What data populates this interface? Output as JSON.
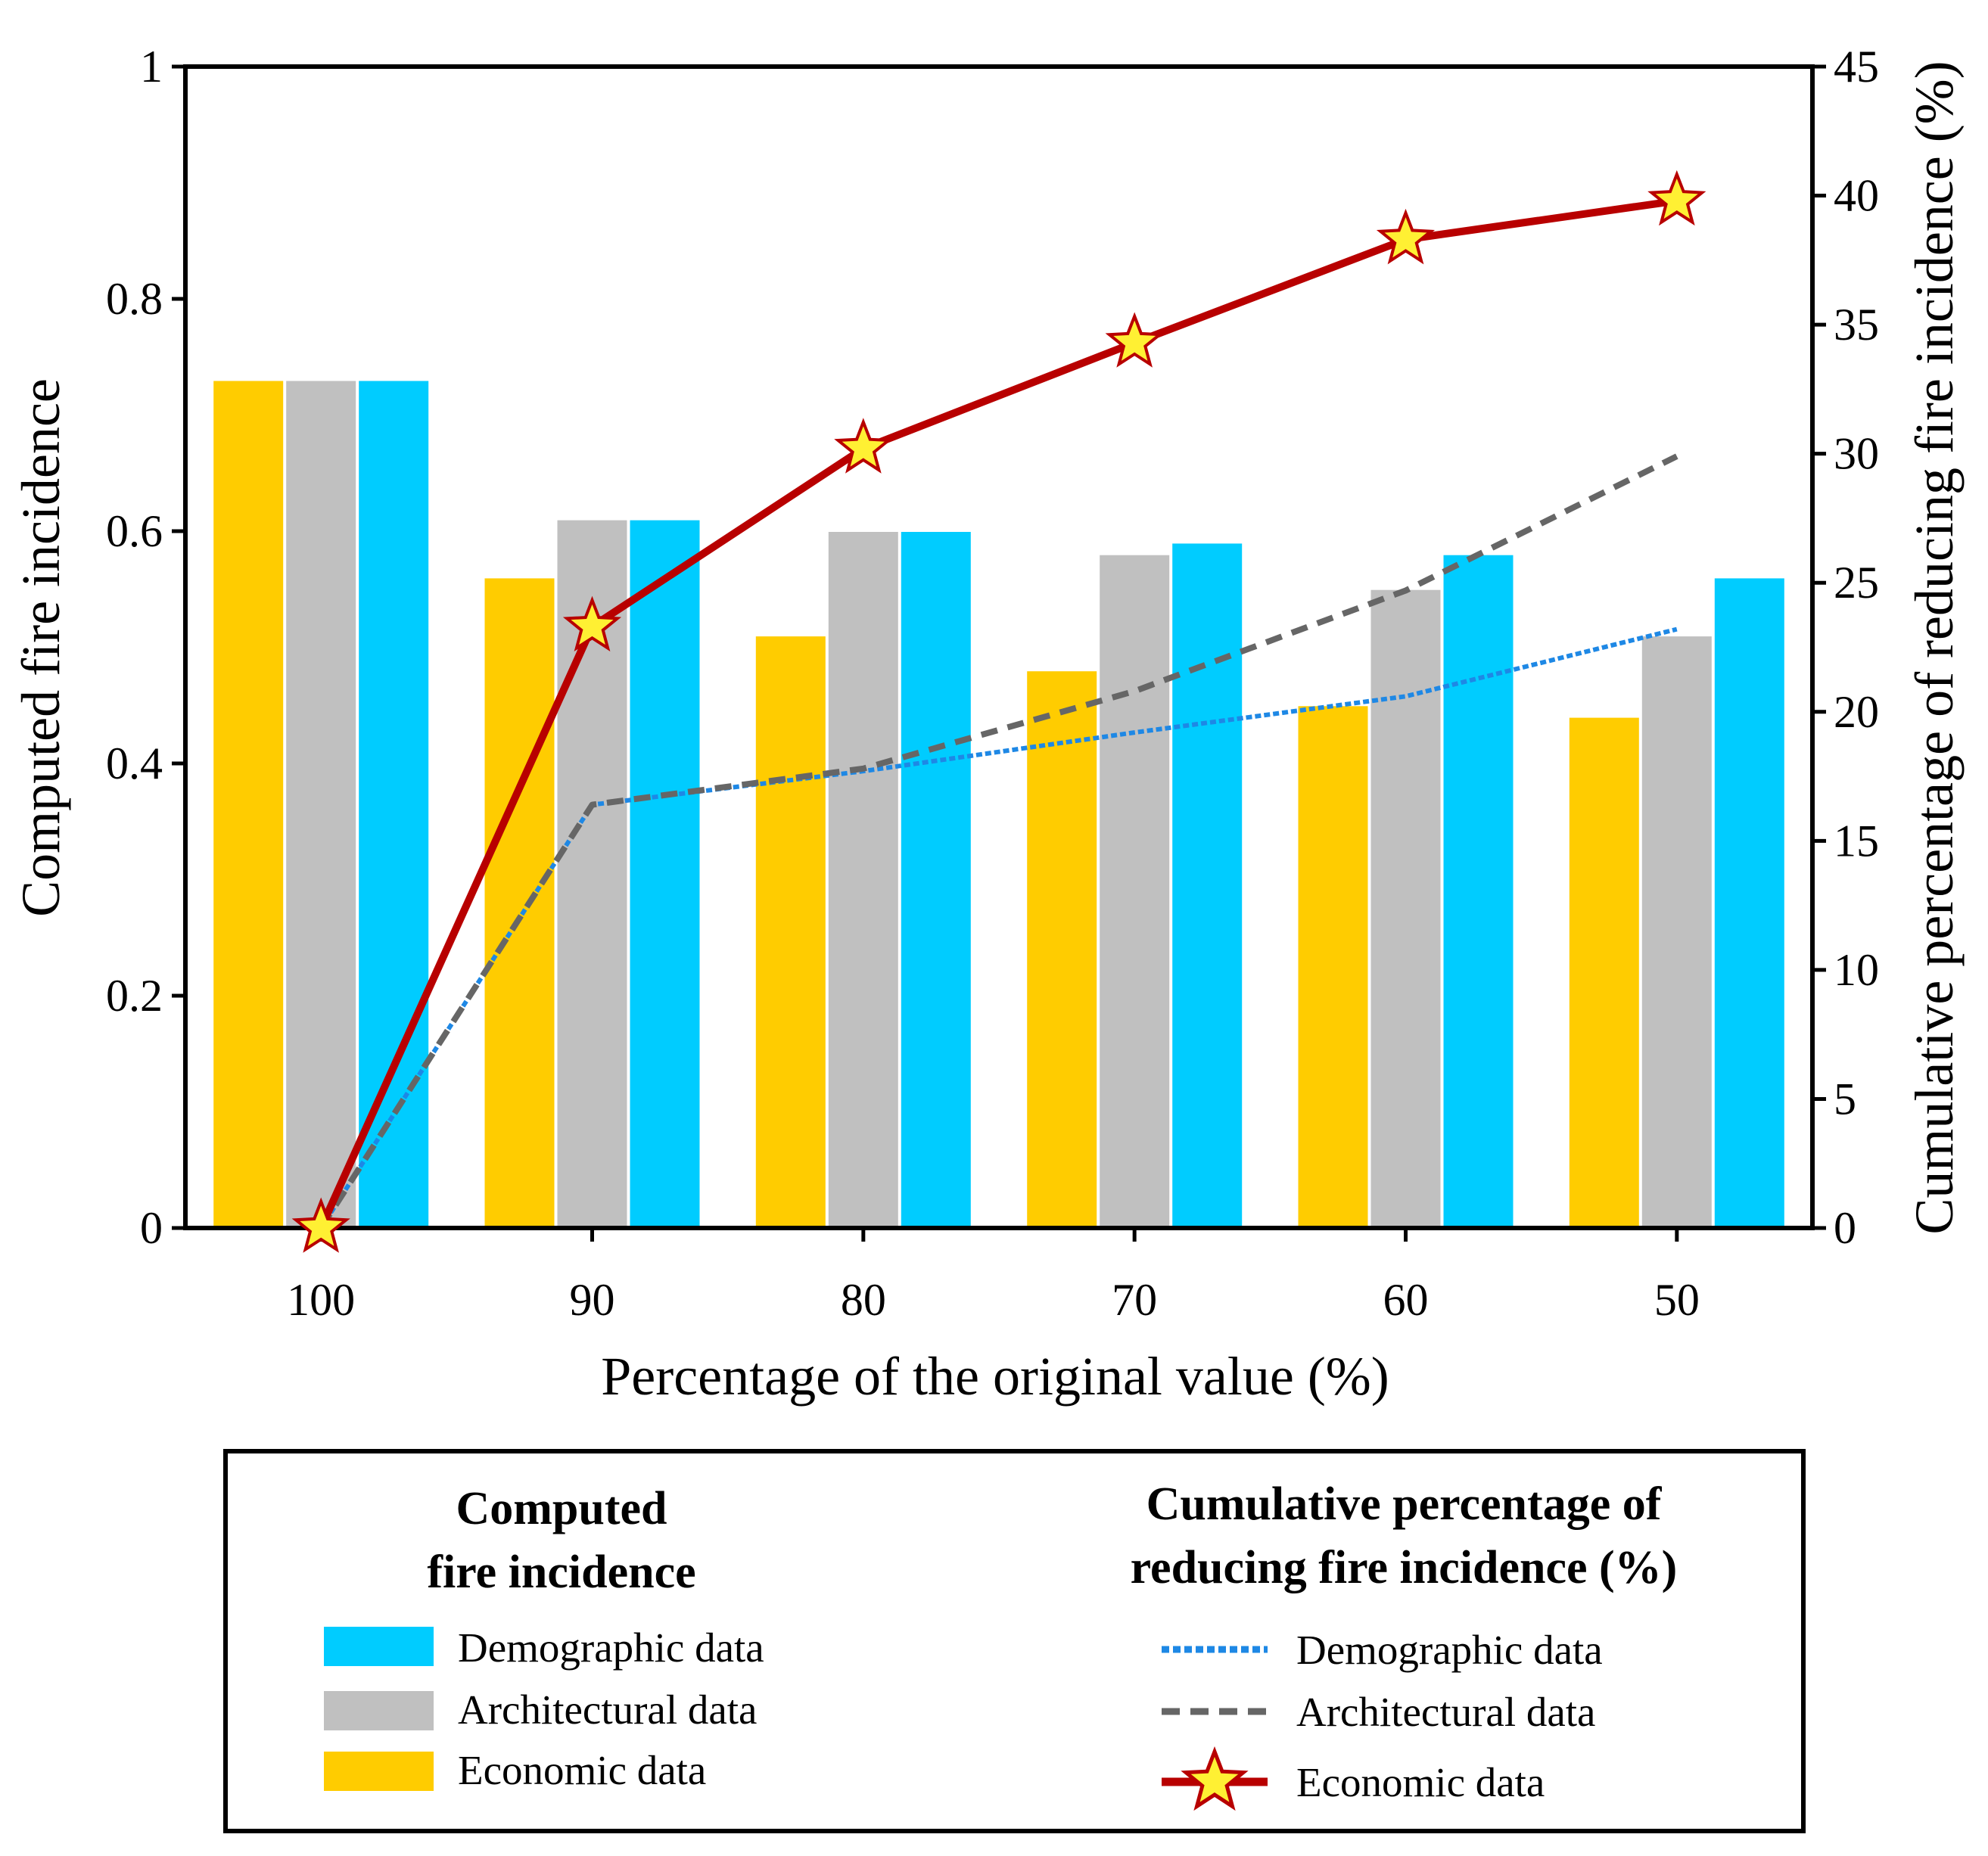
{
  "chart_data": {
    "type": "bar+line",
    "x_axis": {
      "label": "Percentage of the original value (%)",
      "categories": [
        "100",
        "90",
        "80",
        "70",
        "60",
        "50"
      ]
    },
    "y_axis_left": {
      "label": "Computed fire incidence",
      "range": [
        0,
        1
      ],
      "ticks": [
        "0",
        "0.2",
        "0.4",
        "0.6",
        "0.8",
        "1"
      ]
    },
    "y_axis_right": {
      "label": "Cumulative percentage of reducing fire incidence (%)",
      "range": [
        0,
        45
      ],
      "ticks": [
        "0",
        "5",
        "10",
        "15",
        "20",
        "25",
        "30",
        "35",
        "40",
        "45"
      ]
    },
    "bar_series": [
      {
        "name": "Economic data",
        "color": "#FFCC00",
        "values": [
          0.73,
          0.56,
          0.51,
          0.48,
          0.45,
          0.44
        ]
      },
      {
        "name": "Architectural data",
        "color": "#C0C0C0",
        "values": [
          0.73,
          0.61,
          0.6,
          0.58,
          0.55,
          0.51
        ]
      },
      {
        "name": "Demographic data",
        "color": "#00CCFF",
        "values": [
          0.73,
          0.61,
          0.6,
          0.59,
          0.58,
          0.56
        ]
      }
    ],
    "line_series": [
      {
        "name": "Demographic data",
        "color": "#1E88E5",
        "style": "dotted",
        "values": [
          0,
          16.4,
          17.7,
          19.2,
          20.6,
          23.2
        ]
      },
      {
        "name": "Architectural data",
        "color": "#666666",
        "style": "dashed",
        "values": [
          0,
          16.4,
          17.8,
          20.8,
          24.7,
          29.9
        ]
      },
      {
        "name": "Economic data",
        "color": "#B80000",
        "style": "solid-star",
        "marker_color": "#FFF033",
        "values": [
          0,
          23.3,
          30.2,
          34.3,
          38.3,
          39.8
        ]
      }
    ],
    "grid": false
  },
  "legend": {
    "bars_heading_line1": "Computed",
    "bars_heading_line2": "fire incidence",
    "lines_heading_line1": "Cumulative percentage of",
    "lines_heading_line2": "reducing fire incidence (%)",
    "bar_items": [
      "Demographic data",
      "Architectural data",
      "Economic data"
    ],
    "line_items": [
      "Demographic data",
      "Architectural data",
      "Economic data"
    ]
  }
}
